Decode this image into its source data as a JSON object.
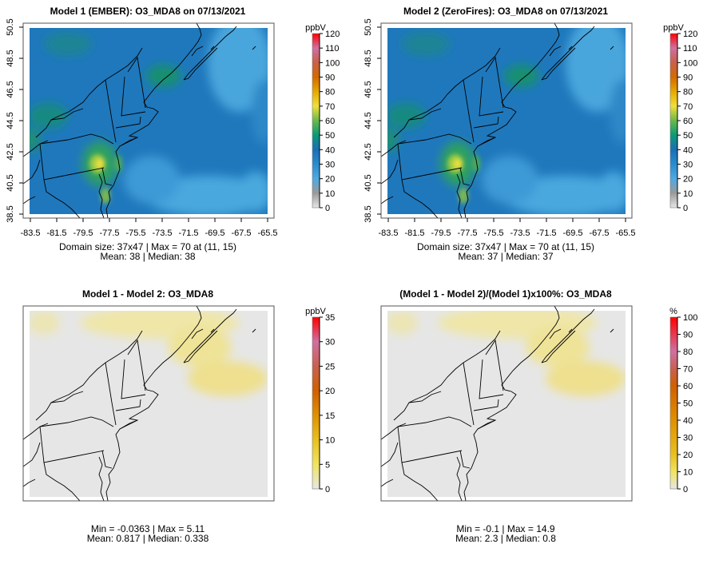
{
  "panels": [
    {
      "title": "Model 1 (EMBER): O3_MDA8 on 07/13/2021",
      "stats_line1": "Domain size: 37x47 | Max = 70 at (11, 15)",
      "stats_line2": "Mean: 38 |  Median: 38",
      "unit": "ppbV",
      "colorbar_ticks": [
        "0",
        "10",
        "20",
        "30",
        "40",
        "50",
        "60",
        "70",
        "80",
        "90",
        "100",
        "110",
        "120"
      ],
      "x_ticks": [
        "-83.5",
        "-81.5",
        "-79.5",
        "-77.5",
        "-75.5",
        "-73.5",
        "-71.5",
        "-69.5",
        "-67.5",
        "-65.5"
      ],
      "y_ticks": [
        "38.5",
        "40.5",
        "42.5",
        "44.5",
        "46.5",
        "48.5",
        "50.5"
      ]
    },
    {
      "title": "Model 2 (ZeroFires): O3_MDA8 on 07/13/2021",
      "stats_line1": "Domain size: 37x47 | Max = 70 at (11, 15)",
      "stats_line2": "Mean: 37 |  Median: 37",
      "unit": "ppbV",
      "colorbar_ticks": [
        "0",
        "10",
        "20",
        "30",
        "40",
        "50",
        "60",
        "70",
        "80",
        "90",
        "100",
        "110",
        "120"
      ],
      "x_ticks": [
        "-83.5",
        "-81.5",
        "-79.5",
        "-77.5",
        "-75.5",
        "-73.5",
        "-71.5",
        "-69.5",
        "-67.5",
        "-65.5"
      ],
      "y_ticks": [
        "38.5",
        "40.5",
        "42.5",
        "44.5",
        "46.5",
        "48.5",
        "50.5"
      ]
    },
    {
      "title": "Model 1 - Model 2: O3_MDA8",
      "stats_line1": "Min = -0.0363 | Max = 5.11",
      "stats_line2": "Mean: 0.817 |  Median: 0.338",
      "unit": "ppbV",
      "colorbar_ticks": [
        "0",
        "5",
        "10",
        "15",
        "20",
        "25",
        "30",
        "35"
      ]
    },
    {
      "title": "(Model 1 - Model 2)/(Model 1)x100%: O3_MDA8",
      "stats_line1": "Min = -0.1 | Max = 14.9",
      "stats_line2": "Mean: 2.3 |  Median: 0.8",
      "unit": "%",
      "colorbar_ticks": [
        "0",
        "10",
        "20",
        "30",
        "40",
        "50",
        "60",
        "70",
        "80",
        "90",
        "100"
      ]
    }
  ],
  "colors": {
    "abs_scale": [
      "#e6e6e6",
      "#9a9a9a",
      "#4fa9e0",
      "#2a8ccf",
      "#1a6fb5",
      "#0a9a78",
      "#6ab84a",
      "#f0e03a",
      "#e6a800",
      "#d46a00",
      "#c8604a",
      "#d070a0",
      "#ff0000"
    ],
    "diff_scale": [
      "#e6e6e6",
      "#f0e460",
      "#e8c020",
      "#e09000",
      "#d06000",
      "#c86050",
      "#d070a0",
      "#ff0000"
    ]
  }
}
